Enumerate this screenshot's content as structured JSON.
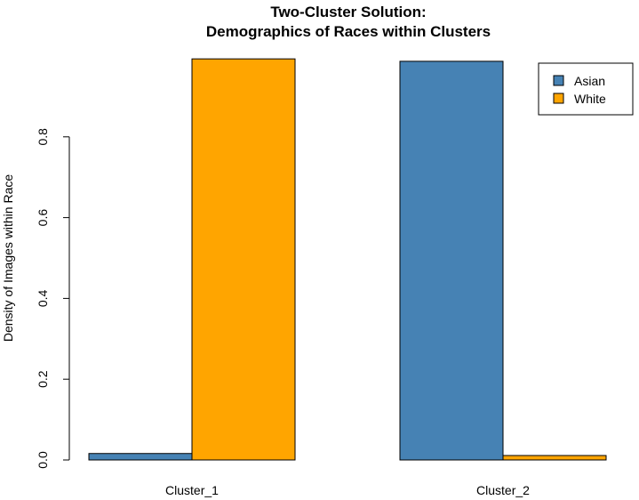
{
  "chart_data": {
    "type": "bar",
    "title": "Two-Cluster Solution:",
    "subtitle": "Demographics of Races within Clusters",
    "ylabel": "Density of Images within Race",
    "xlabel": "",
    "categories": [
      "Cluster_1",
      "Cluster_2"
    ],
    "series": [
      {
        "name": "Asian",
        "color": "#4682B4",
        "values": [
          0.016,
          0.987
        ]
      },
      {
        "name": "White",
        "color": "#FFA500",
        "values": [
          0.993,
          0.011
        ]
      }
    ],
    "ylim": [
      0,
      1.0
    ],
    "yticks": [
      "0.0",
      "0.2",
      "0.4",
      "0.6",
      "0.8"
    ],
    "grid": false,
    "legend_position": "top-right"
  }
}
